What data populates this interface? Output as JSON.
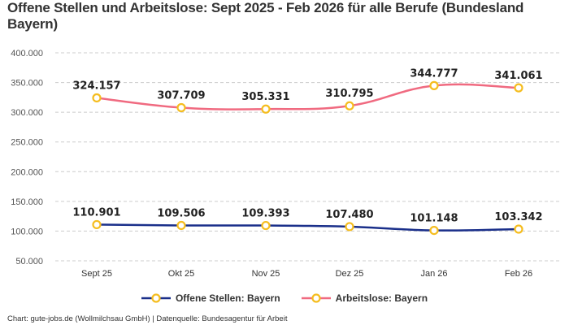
{
  "title": "Offene Stellen und Arbeitslose: Sept 2025 - Feb 2026 für alle Berufe (Bundesland Bayern)",
  "footer": "Chart: gute-jobs.de (Wollmilchsau GmbH) | Datenquelle: Bundesagentur für Arbeit",
  "legend": [
    {
      "label": "Offene Stellen: Bayern",
      "color": "#1a2f8a"
    },
    {
      "label": "Arbeitslose: Bayern",
      "color": "#f06a80"
    }
  ],
  "marker_color": "#f5bd1f",
  "chart_data": {
    "type": "line",
    "title": "Offene Stellen und Arbeitslose: Sept 2025 - Feb 2026 für alle Berufe (Bundesland Bayern)",
    "xlabel": "",
    "ylabel": "",
    "categories": [
      "Sept 25",
      "Okt 25",
      "Nov 25",
      "Dez 25",
      "Jan 26",
      "Feb 26"
    ],
    "series": [
      {
        "name": "Offene Stellen: Bayern",
        "color": "#1a2f8a",
        "values": [
          110901,
          109506,
          109393,
          107480,
          101148,
          103342
        ],
        "labels": [
          "110.901",
          "109.506",
          "109.393",
          "107.480",
          "101.148",
          "103.342"
        ]
      },
      {
        "name": "Arbeitslose: Bayern",
        "color": "#f06a80",
        "values": [
          324157,
          307709,
          305331,
          310795,
          344777,
          341061
        ],
        "labels": [
          "324.157",
          "307.709",
          "305.331",
          "310.795",
          "344.777",
          "341.061"
        ]
      }
    ],
    "yticks": [
      "50.000",
      "100.000",
      "150.000",
      "200.000",
      "250.000",
      "300.000",
      "350.000",
      "400.000"
    ],
    "ylim": [
      50000,
      400000
    ],
    "grid": true,
    "legend_position": "bottom"
  }
}
